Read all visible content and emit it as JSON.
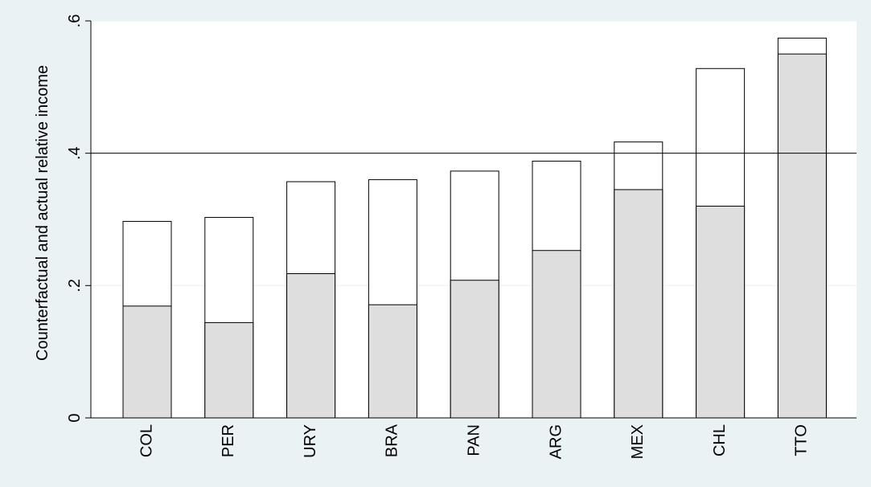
{
  "chart_data": {
    "type": "bar",
    "stacked_overlap": true,
    "categories": [
      "COL",
      "PER",
      "URY",
      "BRA",
      "PAN",
      "ARG",
      "MEX",
      "CHL",
      "TTO"
    ],
    "series": [
      {
        "values": [
          0.297,
          0.303,
          0.357,
          0.36,
          0.373,
          0.388,
          0.417,
          0.528,
          0.574
        ],
        "color": "#ffffff"
      },
      {
        "values": [
          0.169,
          0.144,
          0.218,
          0.171,
          0.208,
          0.253,
          0.345,
          0.32,
          0.55
        ],
        "color": "#dedede"
      }
    ],
    "title": "",
    "xlabel": "",
    "ylabel": "Counterfactual and actual relative income",
    "ylim": [
      0,
      0.6
    ],
    "yticks": [
      0,
      0.2,
      0.4,
      0.6
    ],
    "ytick_labels": [
      "0",
      ".2",
      ".4",
      ".6"
    ],
    "reference_line": 0.4,
    "background_color": "#eaf2f3",
    "plot_background_color": "#ffffff",
    "grid": true
  }
}
